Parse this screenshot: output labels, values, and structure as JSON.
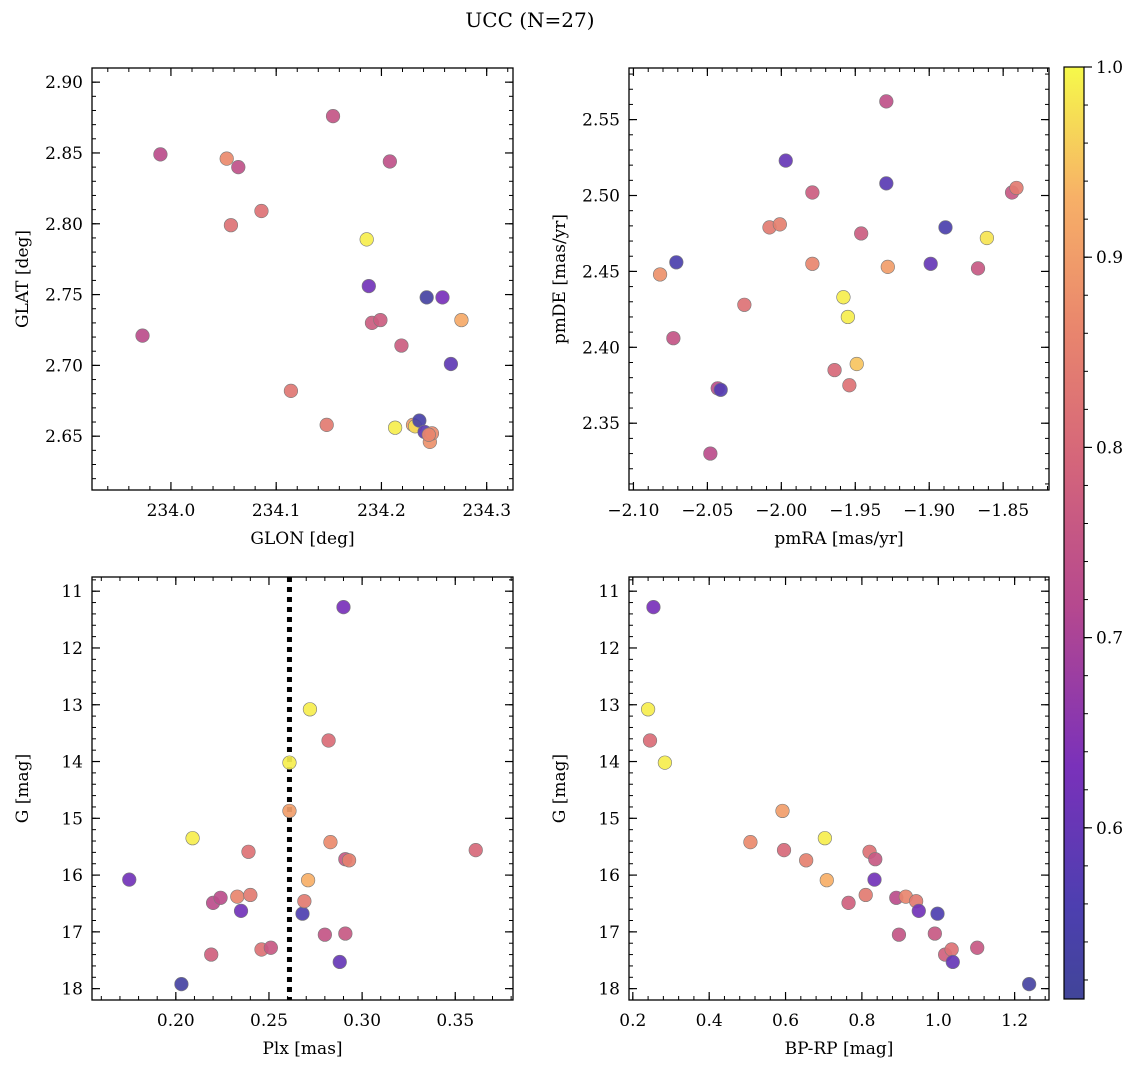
{
  "figure": {
    "title": "UCC (N=27)"
  },
  "colorbar": {
    "cmap": "plasma",
    "vmin": 0.51,
    "vmax": 1.0,
    "ticks": [
      0.6,
      0.7,
      0.8,
      0.9,
      1.0
    ],
    "tick_labels": [
      "0.6",
      "0.7",
      "0.8",
      "0.9",
      "1.0"
    ]
  },
  "chart_data": [
    {
      "type": "scatter",
      "name": "glon-glat",
      "xlabel": "GLON [deg]",
      "ylabel": "GLAT [deg]",
      "xlim": [
        233.925,
        234.325
      ],
      "ylim": [
        2.612,
        2.91
      ],
      "y_inverted": false,
      "xticks": [
        234.0,
        234.1,
        234.2,
        234.3
      ],
      "xtick_labels": [
        "234.0",
        "234.1",
        "234.2",
        "234.3"
      ],
      "yticks": [
        2.65,
        2.7,
        2.75,
        2.8,
        2.85,
        2.9
      ],
      "ytick_labels": [
        "2.65",
        "2.70",
        "2.75",
        "2.80",
        "2.85",
        "2.90"
      ],
      "points": [
        {
          "x": 233.973,
          "y": 2.721,
          "c": 0.73
        },
        {
          "x": 233.99,
          "y": 2.849,
          "c": 0.73
        },
        {
          "x": 234.053,
          "y": 2.846,
          "c": 0.87
        },
        {
          "x": 234.057,
          "y": 2.799,
          "c": 0.82
        },
        {
          "x": 234.064,
          "y": 2.84,
          "c": 0.74
        },
        {
          "x": 234.086,
          "y": 2.809,
          "c": 0.82
        },
        {
          "x": 234.114,
          "y": 2.682,
          "c": 0.83
        },
        {
          "x": 234.148,
          "y": 2.658,
          "c": 0.84
        },
        {
          "x": 234.154,
          "y": 2.876,
          "c": 0.75
        },
        {
          "x": 234.186,
          "y": 2.789,
          "c": 0.99
        },
        {
          "x": 234.188,
          "y": 2.756,
          "c": 0.62
        },
        {
          "x": 234.191,
          "y": 2.73,
          "c": 0.77
        },
        {
          "x": 234.199,
          "y": 2.732,
          "c": 0.77
        },
        {
          "x": 234.208,
          "y": 2.844,
          "c": 0.74
        },
        {
          "x": 234.213,
          "y": 2.656,
          "c": 0.99
        },
        {
          "x": 234.219,
          "y": 2.714,
          "c": 0.77
        },
        {
          "x": 234.23,
          "y": 2.658,
          "c": 0.9
        },
        {
          "x": 234.232,
          "y": 2.657,
          "c": 0.97
        },
        {
          "x": 234.236,
          "y": 2.661,
          "c": 0.54
        },
        {
          "x": 234.241,
          "y": 2.653,
          "c": 0.58
        },
        {
          "x": 234.243,
          "y": 2.748,
          "c": 0.53
        },
        {
          "x": 234.246,
          "y": 2.646,
          "c": 0.88
        },
        {
          "x": 234.248,
          "y": 2.652,
          "c": 0.87
        },
        {
          "x": 234.258,
          "y": 2.748,
          "c": 0.63
        },
        {
          "x": 234.266,
          "y": 2.701,
          "c": 0.59
        },
        {
          "x": 234.276,
          "y": 2.732,
          "c": 0.92
        },
        {
          "x": 234.245,
          "y": 2.651,
          "c": 0.86
        }
      ]
    },
    {
      "type": "scatter",
      "name": "pmra-pmde",
      "xlabel": "pmRA [mas/yr]",
      "ylabel": "pmDE [mas/yr]",
      "xlim": [
        -2.103,
        -1.819
      ],
      "ylim": [
        2.306,
        2.584
      ],
      "y_inverted": false,
      "xticks": [
        -2.1,
        -2.05,
        -2.0,
        -1.95,
        -1.9,
        -1.85
      ],
      "xtick_labels": [
        "−2.10",
        "−2.05",
        "−2.00",
        "−1.95",
        "−1.90",
        "−1.85"
      ],
      "yticks": [
        2.35,
        2.4,
        2.45,
        2.5,
        2.55
      ],
      "ytick_labels": [
        "2.35",
        "2.40",
        "2.45",
        "2.50",
        "2.55"
      ],
      "points": [
        {
          "x": -2.082,
          "y": 2.448,
          "c": 0.88
        },
        {
          "x": -2.071,
          "y": 2.456,
          "c": 0.55
        },
        {
          "x": -2.073,
          "y": 2.406,
          "c": 0.75
        },
        {
          "x": -2.048,
          "y": 2.33,
          "c": 0.73
        },
        {
          "x": -2.043,
          "y": 2.373,
          "c": 0.73
        },
        {
          "x": -2.041,
          "y": 2.372,
          "c": 0.57
        },
        {
          "x": -2.025,
          "y": 2.428,
          "c": 0.82
        },
        {
          "x": -2.008,
          "y": 2.479,
          "c": 0.84
        },
        {
          "x": -2.001,
          "y": 2.481,
          "c": 0.85
        },
        {
          "x": -1.997,
          "y": 2.523,
          "c": 0.6
        },
        {
          "x": -1.979,
          "y": 2.502,
          "c": 0.77
        },
        {
          "x": -1.979,
          "y": 2.455,
          "c": 0.86
        },
        {
          "x": -1.964,
          "y": 2.385,
          "c": 0.8
        },
        {
          "x": -1.958,
          "y": 2.433,
          "c": 0.99
        },
        {
          "x": -1.955,
          "y": 2.42,
          "c": 0.99
        },
        {
          "x": -1.954,
          "y": 2.375,
          "c": 0.82
        },
        {
          "x": -1.949,
          "y": 2.389,
          "c": 0.95
        },
        {
          "x": -1.946,
          "y": 2.475,
          "c": 0.77
        },
        {
          "x": -1.929,
          "y": 2.562,
          "c": 0.74
        },
        {
          "x": -1.929,
          "y": 2.508,
          "c": 0.58
        },
        {
          "x": -1.928,
          "y": 2.453,
          "c": 0.9
        },
        {
          "x": -1.899,
          "y": 2.455,
          "c": 0.6
        },
        {
          "x": -1.889,
          "y": 2.479,
          "c": 0.55
        },
        {
          "x": -1.867,
          "y": 2.452,
          "c": 0.76
        },
        {
          "x": -1.861,
          "y": 2.472,
          "c": 0.98
        },
        {
          "x": -1.844,
          "y": 2.502,
          "c": 0.76
        },
        {
          "x": -1.841,
          "y": 2.505,
          "c": 0.84
        }
      ]
    },
    {
      "type": "scatter",
      "name": "plx-g",
      "xlabel": "Plx [mas]",
      "ylabel": "G [mag]",
      "xlim": [
        0.155,
        0.381
      ],
      "ylim": [
        10.75,
        18.2
      ],
      "y_inverted": true,
      "vline": {
        "x": 0.261,
        "style": "dotted"
      },
      "xticks": [
        0.2,
        0.25,
        0.3,
        0.35
      ],
      "xtick_labels": [
        "0.20",
        "0.25",
        "0.30",
        "0.35"
      ],
      "yticks": [
        11,
        12,
        13,
        14,
        15,
        16,
        17,
        18
      ],
      "ytick_labels": [
        "11",
        "12",
        "13",
        "14",
        "15",
        "16",
        "17",
        "18"
      ],
      "points": [
        {
          "x": 0.175,
          "y": 16.08,
          "c": 0.62
        },
        {
          "x": 0.203,
          "y": 17.92,
          "c": 0.53
        },
        {
          "x": 0.209,
          "y": 15.35,
          "c": 0.99
        },
        {
          "x": 0.219,
          "y": 17.4,
          "c": 0.78
        },
        {
          "x": 0.22,
          "y": 16.49,
          "c": 0.73
        },
        {
          "x": 0.224,
          "y": 16.4,
          "c": 0.73
        },
        {
          "x": 0.233,
          "y": 16.38,
          "c": 0.86
        },
        {
          "x": 0.235,
          "y": 16.63,
          "c": 0.62
        },
        {
          "x": 0.239,
          "y": 15.59,
          "c": 0.82
        },
        {
          "x": 0.24,
          "y": 16.35,
          "c": 0.84
        },
        {
          "x": 0.246,
          "y": 17.31,
          "c": 0.82
        },
        {
          "x": 0.251,
          "y": 17.28,
          "c": 0.76
        },
        {
          "x": 0.261,
          "y": 14.02,
          "c": 0.99
        },
        {
          "x": 0.261,
          "y": 14.87,
          "c": 0.9
        },
        {
          "x": 0.268,
          "y": 16.68,
          "c": 0.56
        },
        {
          "x": 0.269,
          "y": 16.46,
          "c": 0.84
        },
        {
          "x": 0.271,
          "y": 16.09,
          "c": 0.93
        },
        {
          "x": 0.272,
          "y": 13.08,
          "c": 0.99
        },
        {
          "x": 0.28,
          "y": 17.05,
          "c": 0.75
        },
        {
          "x": 0.282,
          "y": 13.63,
          "c": 0.81
        },
        {
          "x": 0.283,
          "y": 15.42,
          "c": 0.87
        },
        {
          "x": 0.288,
          "y": 17.53,
          "c": 0.6
        },
        {
          "x": 0.29,
          "y": 11.28,
          "c": 0.63
        },
        {
          "x": 0.291,
          "y": 15.72,
          "c": 0.76
        },
        {
          "x": 0.291,
          "y": 17.03,
          "c": 0.76
        },
        {
          "x": 0.293,
          "y": 15.74,
          "c": 0.85
        },
        {
          "x": 0.361,
          "y": 15.56,
          "c": 0.8
        }
      ]
    },
    {
      "type": "scatter",
      "name": "bprp-g",
      "xlabel": "BP-RP [mag]",
      "ylabel": "G [mag]",
      "xlim": [
        0.19,
        1.29
      ],
      "ylim": [
        10.75,
        18.2
      ],
      "y_inverted": true,
      "xticks": [
        0.2,
        0.4,
        0.6,
        0.8,
        1.0,
        1.2
      ],
      "xtick_labels": [
        "0.2",
        "0.4",
        "0.6",
        "0.8",
        "1.0",
        "1.2"
      ],
      "yticks": [
        11,
        12,
        13,
        14,
        15,
        16,
        17,
        18
      ],
      "ytick_labels": [
        "11",
        "12",
        "13",
        "14",
        "15",
        "16",
        "17",
        "18"
      ],
      "points": [
        {
          "x": 0.254,
          "y": 11.28,
          "c": 0.63
        },
        {
          "x": 0.24,
          "y": 13.08,
          "c": 0.99
        },
        {
          "x": 0.245,
          "y": 13.63,
          "c": 0.81
        },
        {
          "x": 0.284,
          "y": 14.02,
          "c": 0.99
        },
        {
          "x": 0.508,
          "y": 15.42,
          "c": 0.87
        },
        {
          "x": 0.592,
          "y": 14.87,
          "c": 0.9
        },
        {
          "x": 0.596,
          "y": 15.56,
          "c": 0.8
        },
        {
          "x": 0.654,
          "y": 15.74,
          "c": 0.85
        },
        {
          "x": 0.703,
          "y": 15.35,
          "c": 0.99
        },
        {
          "x": 0.708,
          "y": 16.09,
          "c": 0.93
        },
        {
          "x": 0.765,
          "y": 16.49,
          "c": 0.78
        },
        {
          "x": 0.81,
          "y": 16.35,
          "c": 0.84
        },
        {
          "x": 0.82,
          "y": 15.59,
          "c": 0.82
        },
        {
          "x": 0.833,
          "y": 16.08,
          "c": 0.62
        },
        {
          "x": 0.835,
          "y": 15.72,
          "c": 0.76
        },
        {
          "x": 0.89,
          "y": 16.4,
          "c": 0.73
        },
        {
          "x": 0.897,
          "y": 17.05,
          "c": 0.75
        },
        {
          "x": 0.915,
          "y": 16.38,
          "c": 0.86
        },
        {
          "x": 0.942,
          "y": 16.46,
          "c": 0.84
        },
        {
          "x": 0.949,
          "y": 16.63,
          "c": 0.62
        },
        {
          "x": 0.991,
          "y": 17.03,
          "c": 0.76
        },
        {
          "x": 0.998,
          "y": 16.68,
          "c": 0.56
        },
        {
          "x": 1.018,
          "y": 17.4,
          "c": 0.78
        },
        {
          "x": 1.035,
          "y": 17.31,
          "c": 0.82
        },
        {
          "x": 1.038,
          "y": 17.53,
          "c": 0.6
        },
        {
          "x": 1.102,
          "y": 17.28,
          "c": 0.76
        },
        {
          "x": 1.238,
          "y": 17.92,
          "c": 0.53
        }
      ]
    }
  ]
}
